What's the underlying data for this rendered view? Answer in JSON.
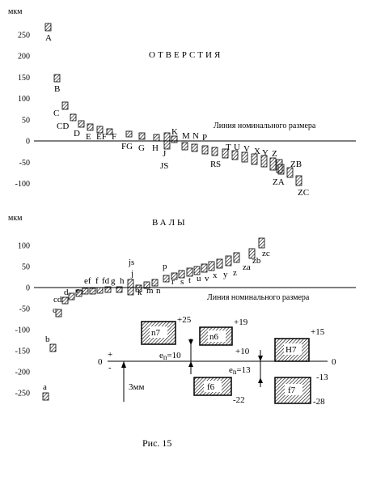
{
  "top": {
    "unit": "мкм",
    "title": "ОТВЕРСТИЯ",
    "baseline_label": "Линия номинального размера",
    "ticks": [
      250,
      200,
      150,
      100,
      50,
      0,
      -50,
      -100
    ],
    "ylim": [
      -110,
      280
    ],
    "labels": [
      "A",
      "B",
      "C",
      "CD",
      "D",
      "E",
      "EF",
      "F",
      "FG",
      "G",
      "H",
      "JS",
      "J",
      "K",
      "M",
      "N",
      "P",
      "R",
      "S",
      "T",
      "U",
      "V",
      "X",
      "Y",
      "Z",
      "ZA",
      "ZB",
      "ZC"
    ]
  },
  "bottom": {
    "unit": "мкм",
    "title": "ВАЛЫ",
    "baseline_label": "Линия номинального размера",
    "ticks": [
      100,
      50,
      0,
      -50,
      -100,
      -150,
      -200,
      -250
    ],
    "ylim": [
      -270,
      120
    ],
    "labels": [
      "a",
      "b",
      "c",
      "cd",
      "d",
      "e",
      "ef",
      "f",
      "fd",
      "g",
      "h",
      "js",
      "j",
      "k",
      "m",
      "n",
      "p",
      "r",
      "s",
      "t",
      "u",
      "v",
      "x",
      "y",
      "z",
      "za",
      "zb",
      "zc"
    ]
  },
  "inset": {
    "zero": "0",
    "zero_right": "0",
    "plus": "+",
    "minus": "-",
    "scale": "3мм",
    "boxes": [
      {
        "name": "n7",
        "top": "+25"
      },
      {
        "name": "n6",
        "top": "+19"
      },
      {
        "name": "H7",
        "top": "+15"
      },
      {
        "name": "f6",
        "bottom": "-22"
      },
      {
        "name": "f7",
        "bottom": "-28"
      }
    ],
    "en1": "e",
    "en1_sub": "n",
    "en1_val": "=10",
    "en1_side": "+10",
    "en2": "e",
    "en2_sub": "n",
    "en2_val": "=13",
    "en2_side": "-13"
  },
  "caption": "Рис. 15"
}
